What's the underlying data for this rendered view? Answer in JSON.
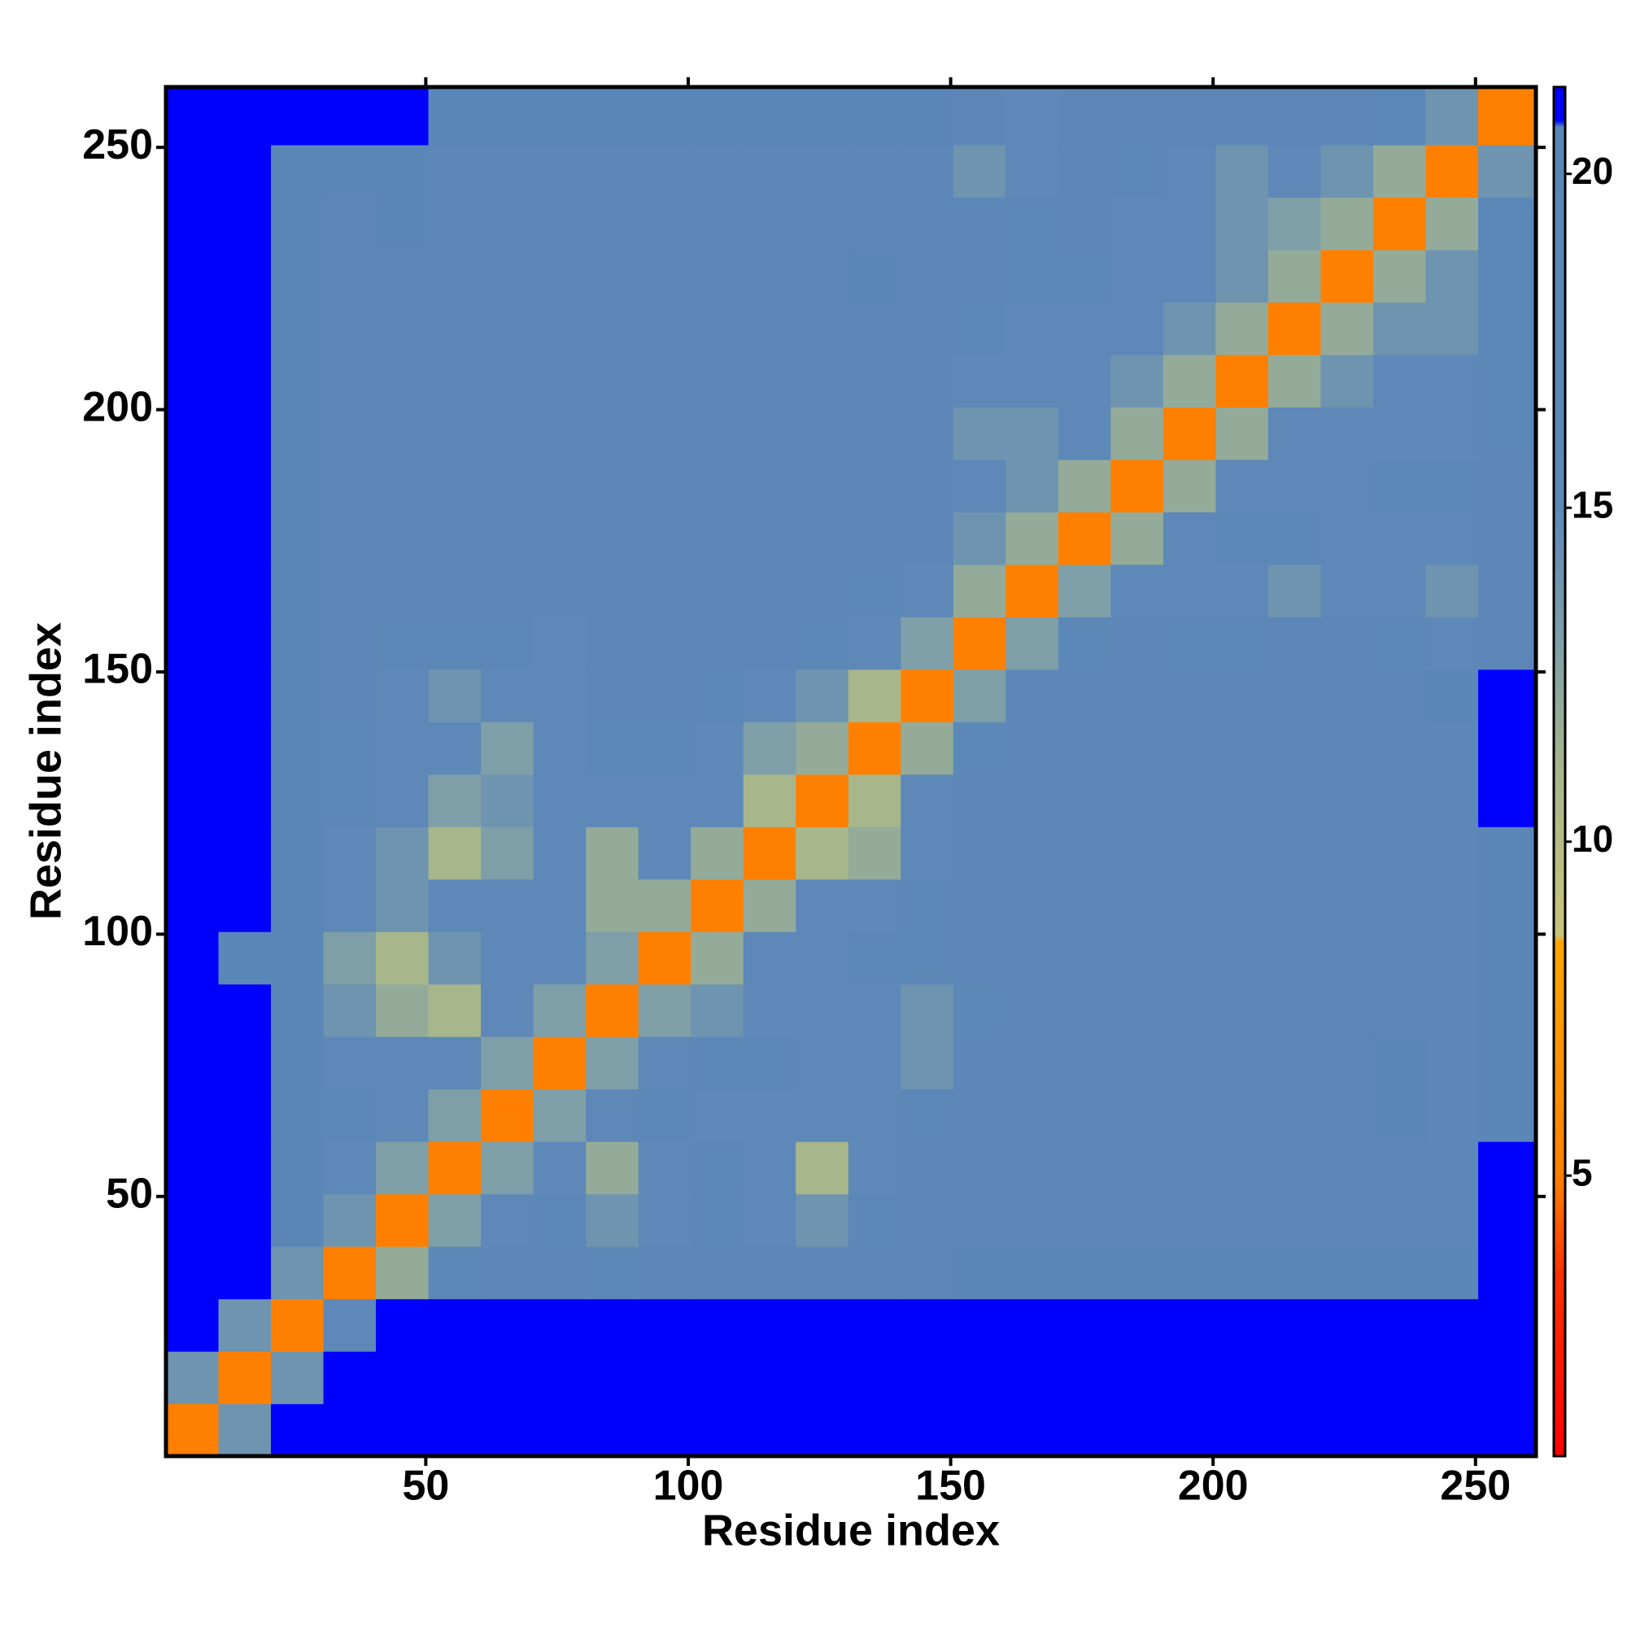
{
  "chart_data": {
    "type": "heatmap",
    "xlabel": "Residue index",
    "ylabel": "Residue index",
    "xlim": [
      0.5,
      261.5
    ],
    "ylim": [
      0.5,
      261.5
    ],
    "xticks": [
      50,
      100,
      150,
      200,
      250
    ],
    "yticks": [
      50,
      100,
      150,
      200,
      250
    ],
    "xbins": [
      0.5,
      10.5,
      20.5,
      30.5,
      40.5,
      50.5,
      60.5,
      70.5,
      80.5,
      90.5,
      100.5,
      110.5,
      120.5,
      130.5,
      140.5,
      150.5,
      160.5,
      170.5,
      180.5,
      190.5,
      200.5,
      210.5,
      220.5,
      230.5,
      240.5,
      250.5,
      261.5
    ],
    "ybins": [
      0.5,
      10.5,
      20.5,
      30.5,
      40.5,
      50.5,
      60.5,
      70.5,
      80.5,
      90.5,
      100.5,
      110.5,
      120.5,
      130.5,
      140.5,
      150.5,
      160.5,
      170.5,
      180.5,
      190.5,
      200.5,
      210.5,
      220.5,
      230.5,
      240.5,
      250.5,
      261.5
    ],
    "values": [
      [
        5,
        14,
        21,
        21,
        21,
        21,
        21,
        21,
        21,
        21,
        21,
        21,
        21,
        21,
        21,
        21,
        21,
        21,
        21,
        21,
        21,
        21,
        21,
        21,
        21,
        21
      ],
      [
        14,
        5,
        14,
        21,
        21,
        21,
        21,
        21,
        21,
        21,
        21,
        21,
        21,
        21,
        21,
        21,
        21,
        21,
        21,
        21,
        21,
        21,
        21,
        21,
        21,
        21
      ],
      [
        21,
        14,
        5,
        15,
        21,
        21,
        21,
        21,
        21,
        21,
        21,
        21,
        21,
        21,
        21,
        21,
        21,
        21,
        21,
        21,
        21,
        21,
        21,
        21,
        21,
        21
      ],
      [
        21,
        21,
        14,
        5,
        12,
        17,
        18,
        18,
        17,
        18,
        19,
        19,
        19,
        19,
        19,
        20,
        20,
        20,
        20,
        20,
        20,
        20,
        20,
        20,
        20,
        21
      ],
      [
        21,
        21,
        20,
        14,
        5,
        13,
        15,
        17,
        14,
        16,
        17,
        16,
        14,
        17,
        18,
        18,
        18,
        18,
        19,
        18,
        19,
        18,
        19,
        18,
        19,
        21
      ],
      [
        21,
        21,
        20,
        16,
        13,
        5,
        13,
        16,
        12,
        15,
        17,
        15,
        11,
        16,
        18,
        18,
        18,
        18,
        18,
        19,
        18,
        19,
        19,
        19,
        19,
        21
      ],
      [
        21,
        21,
        20,
        17,
        15,
        13,
        5,
        13,
        16,
        17,
        16,
        15,
        15,
        16,
        17,
        18,
        18,
        18,
        18,
        18,
        19,
        19,
        19,
        20,
        19,
        20
      ],
      [
        21,
        21,
        20,
        16,
        15,
        15,
        13,
        5,
        13,
        15,
        17,
        17,
        16,
        15,
        14,
        18,
        18,
        18,
        18,
        19,
        18,
        19,
        19,
        20,
        19,
        20
      ],
      [
        21,
        21,
        20,
        14,
        12,
        11,
        15,
        13,
        5,
        13,
        14,
        15,
        16,
        16,
        14,
        17,
        18,
        19,
        18,
        18,
        19,
        18,
        18,
        19,
        19,
        20
      ],
      [
        21,
        20,
        20,
        13,
        11,
        14,
        16,
        15,
        13,
        5,
        12,
        15,
        16,
        17,
        17,
        18,
        18,
        19,
        18,
        18,
        18,
        19,
        18,
        18,
        19,
        20
      ],
      [
        21,
        21,
        20,
        15,
        14,
        15,
        16,
        16,
        12,
        12,
        5,
        12,
        15,
        16,
        17,
        18,
        19,
        18,
        18,
        18,
        18,
        18,
        18,
        19,
        18,
        20
      ],
      [
        21,
        21,
        20,
        16,
        14,
        11,
        13,
        15,
        12,
        15,
        12,
        5,
        11,
        12,
        16,
        18,
        18,
        18,
        18,
        18,
        18,
        18,
        18,
        18,
        18,
        20
      ],
      [
        21,
        21,
        20,
        17,
        15,
        13,
        14,
        16,
        16,
        16,
        15,
        11,
        5,
        11,
        15,
        18,
        18,
        18,
        19,
        18,
        18,
        19,
        19,
        19,
        19,
        21
      ],
      [
        21,
        21,
        20,
        17,
        16,
        15,
        13,
        15,
        17,
        17,
        16,
        13,
        12,
        5,
        12,
        17,
        18,
        18,
        19,
        18,
        19,
        19,
        19,
        19,
        19,
        21
      ],
      [
        21,
        21,
        20,
        18,
        16,
        14,
        16,
        15,
        18,
        18,
        17,
        15,
        14,
        11,
        5,
        13,
        18,
        18,
        18,
        18,
        19,
        19,
        19,
        19,
        20,
        21
      ],
      [
        21,
        21,
        20,
        18,
        17,
        17,
        17,
        16,
        18,
        18,
        18,
        18,
        17,
        16,
        13,
        5,
        13,
        17,
        18,
        17,
        17,
        18,
        18,
        17,
        15,
        18
      ],
      [
        21,
        21,
        20,
        18,
        18,
        18,
        18,
        18,
        18,
        18,
        18,
        18,
        18,
        17,
        16,
        12,
        5,
        13,
        15,
        15,
        15,
        14,
        15,
        16,
        14,
        18
      ],
      [
        21,
        21,
        20,
        18,
        18,
        18,
        18,
        18,
        18,
        18,
        18,
        18,
        18,
        18,
        18,
        14,
        12,
        5,
        12,
        15,
        17,
        17,
        16,
        15,
        16,
        18
      ],
      [
        21,
        21,
        20,
        18,
        19,
        18,
        18,
        18,
        18,
        19,
        18,
        18,
        18,
        19,
        18,
        15,
        14,
        12,
        5,
        12,
        15,
        16,
        16,
        17,
        17,
        18
      ],
      [
        21,
        21,
        20,
        19,
        19,
        18,
        19,
        19,
        19,
        18,
        19,
        18,
        18,
        18,
        18,
        14,
        14,
        16,
        12,
        5,
        12,
        15,
        16,
        16,
        15,
        17
      ],
      [
        21,
        21,
        20,
        19,
        19,
        19,
        19,
        18,
        18,
        19,
        18,
        18,
        18,
        19,
        18,
        15,
        15,
        15,
        14,
        12,
        5,
        12,
        14,
        15,
        15,
        17
      ],
      [
        21,
        21,
        20,
        19,
        18,
        19,
        18,
        18,
        18,
        18,
        18,
        18,
        18,
        18,
        18,
        17,
        16,
        15,
        15,
        14,
        12,
        5,
        12,
        14,
        14,
        17
      ],
      [
        21,
        21,
        20,
        19,
        19,
        19,
        18,
        19,
        19,
        18,
        19,
        19,
        19,
        20,
        19,
        18,
        17,
        17,
        16,
        16,
        14,
        12,
        5,
        12,
        14,
        17
      ],
      [
        21,
        21,
        20,
        19,
        20,
        19,
        19,
        19,
        19,
        18,
        19,
        19,
        19,
        19,
        18,
        18,
        17,
        18,
        16,
        15,
        14,
        13,
        12,
        5,
        12,
        17
      ],
      [
        21,
        21,
        20,
        20,
        20,
        19,
        19,
        19,
        19,
        19,
        19,
        19,
        19,
        19,
        18,
        14,
        16,
        18,
        17,
        16,
        14,
        15,
        14,
        12,
        5,
        14
      ],
      [
        21,
        21,
        21,
        21,
        21,
        20,
        20,
        20,
        20,
        20,
        20,
        20,
        20,
        20,
        20,
        19,
        16,
        18,
        18,
        19,
        18,
        18,
        18,
        17,
        14,
        5
      ]
    ],
    "clim": [
      0.8,
      21.3
    ],
    "cticks": [
      5,
      10,
      15,
      20
    ],
    "colorscale": [
      [
        0.8,
        "#ff0000"
      ],
      [
        3.5,
        "#ff3000"
      ],
      [
        5,
        "#ff8000"
      ],
      [
        8.5,
        "#ffa500"
      ],
      [
        8.6,
        "#c8c47a"
      ],
      [
        11,
        "#a8b68c"
      ],
      [
        13,
        "#7f9fa8"
      ],
      [
        15,
        "#5d88b8"
      ],
      [
        20.7,
        "#5b87b8"
      ],
      [
        20.8,
        "#0000ff"
      ],
      [
        21.3,
        "#0000ff"
      ]
    ]
  }
}
